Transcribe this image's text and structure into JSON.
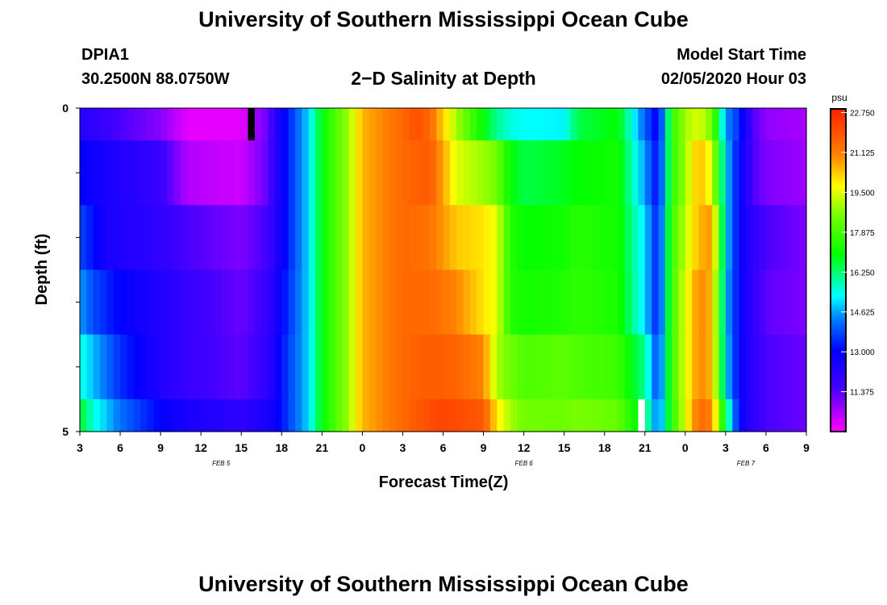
{
  "page": {
    "title_top": "University of Southern Mississippi Ocean Cube",
    "title_bottom": "University of Southern Mississippi Ocean Cube",
    "station_id": "DPIA1",
    "station_coords": "30.2500N 88.0750W",
    "plot_subtitle": "2−D Salinity at Depth",
    "model_start_label": "Model Start Time",
    "model_start_value": "02/05/2020 Hour 03"
  },
  "chart_data": {
    "type": "heatmap",
    "title": "2−D Salinity at Depth",
    "xlabel": "Forecast Time(Z)",
    "ylabel": "Depth (ft)",
    "ylim": [
      0,
      5
    ],
    "y_tick_labels": [
      "0",
      "5"
    ],
    "x_tick_labels": [
      "3",
      "6",
      "9",
      "12",
      "15",
      "18",
      "21",
      "0",
      "3",
      "6",
      "9",
      "12",
      "15",
      "18",
      "21",
      "0",
      "3",
      "6",
      "9"
    ],
    "date_labels": [
      {
        "text": "FEB 5",
        "at_tick": 3.5
      },
      {
        "text": "FEB 6",
        "at_tick": 11
      },
      {
        "text": "FEB 7",
        "at_tick": 16.5
      }
    ],
    "units": "psu",
    "colorbar_ticks": [
      "22.750",
      "21.125",
      "19.500",
      "17.875",
      "16.250",
      "14.625",
      "13.000",
      "11.375"
    ],
    "color_range": [
      9.75,
      22.9
    ],
    "n_hours": 54,
    "depth_bands": [
      [
        0,
        0.5
      ],
      [
        0.5,
        1.5
      ],
      [
        1.5,
        2.5
      ],
      [
        2.5,
        3.5
      ],
      [
        3.5,
        4.5
      ],
      [
        4.5,
        5
      ]
    ],
    "missing_cells": [
      {
        "band": 0,
        "hour": 12.5,
        "color": "#000000"
      },
      {
        "band": 5,
        "hour": 41.5,
        "color": "#ffffff"
      }
    ],
    "profiles": [
      {
        "depth_band": 0,
        "hours": [
          0,
          3,
          6,
          8,
          12,
          14,
          15,
          17,
          18,
          20,
          21,
          24,
          25,
          26,
          28,
          30,
          31,
          32,
          33,
          36,
          37,
          40,
          42,
          43,
          44,
          45,
          46,
          47,
          48,
          49,
          50,
          51,
          54
        ],
        "values": [
          12.2,
          11.5,
          10.9,
          10.0,
          10.0,
          11.2,
          12.8,
          15.0,
          17.0,
          19.0,
          20.5,
          21.5,
          22.0,
          21.5,
          19.0,
          17.0,
          16.0,
          15.5,
          15.3,
          15.2,
          16.5,
          17.0,
          14.0,
          12.8,
          17.5,
          19.0,
          19.5,
          18.5,
          14.5,
          13.5,
          11.5,
          10.8,
          10.6
        ]
      },
      {
        "depth_band": 1,
        "hours": [
          0,
          2,
          6,
          8,
          12,
          14,
          15,
          17,
          18,
          20,
          21,
          24,
          26,
          28,
          30,
          31,
          32,
          33,
          36,
          37,
          40,
          42,
          43,
          44,
          45,
          46,
          47,
          48,
          49,
          50,
          51,
          54
        ],
        "values": [
          13.0,
          12.5,
          11.8,
          10.5,
          10.2,
          11.3,
          12.8,
          15.0,
          17.0,
          19.0,
          20.5,
          21.5,
          21.8,
          19.5,
          18.9,
          18.5,
          17.0,
          16.5,
          16.8,
          17.0,
          17.2,
          14.5,
          13.0,
          17.5,
          19.0,
          20.5,
          19.5,
          15.0,
          13.0,
          11.5,
          11.0,
          10.7
        ]
      },
      {
        "depth_band": 2,
        "hours": [
          0,
          2,
          6,
          8,
          12,
          14,
          15,
          17,
          18,
          20,
          21,
          24,
          26,
          28,
          30,
          31,
          32,
          33,
          36,
          37,
          40,
          42,
          43,
          44,
          45,
          46,
          47,
          48,
          49,
          50,
          51,
          54
        ],
        "values": [
          13.8,
          12.5,
          12.0,
          11.5,
          11.0,
          11.6,
          12.8,
          15.0,
          17.0,
          19.0,
          20.5,
          21.5,
          21.3,
          20.3,
          20.0,
          19.5,
          17.5,
          17.0,
          17.2,
          17.5,
          17.2,
          15.0,
          13.2,
          17.8,
          19.2,
          20.5,
          20.8,
          15.0,
          13.0,
          12.0,
          11.5,
          11.0
        ]
      },
      {
        "depth_band": 3,
        "hours": [
          0,
          1,
          3,
          6,
          8,
          12,
          14,
          15,
          17,
          18,
          20,
          21,
          24,
          26,
          28,
          30,
          31,
          32,
          33,
          36,
          37,
          40,
          42,
          43,
          44,
          45,
          46,
          47,
          48,
          49,
          50,
          51,
          54
        ],
        "values": [
          14.6,
          13.8,
          13.0,
          12.3,
          11.8,
          11.2,
          11.8,
          13.0,
          15.0,
          17.0,
          19.0,
          20.5,
          21.5,
          21.5,
          21.0,
          20.0,
          19.5,
          17.5,
          17.2,
          17.4,
          17.6,
          17.3,
          15.0,
          13.2,
          17.8,
          19.5,
          21.0,
          20.5,
          14.8,
          13.0,
          12.0,
          11.3,
          11.0
        ]
      },
      {
        "depth_band": 4,
        "hours": [
          0,
          1,
          3,
          6,
          8,
          12,
          14,
          15,
          17,
          18,
          20,
          21,
          24,
          26,
          28,
          30,
          31,
          32,
          33,
          36,
          37,
          40,
          42,
          43,
          44,
          45,
          46,
          47,
          48,
          49,
          50,
          51,
          54
        ],
        "values": [
          15.5,
          14.8,
          13.5,
          12.3,
          11.8,
          11.3,
          12.0,
          13.2,
          15.0,
          17.0,
          19.0,
          20.5,
          21.5,
          21.8,
          21.6,
          21.0,
          19.0,
          18.5,
          18.0,
          18.2,
          18.0,
          17.8,
          16.0,
          13.5,
          17.8,
          19.5,
          21.0,
          20.5,
          15.0,
          13.0,
          12.0,
          11.5,
          11.2
        ]
      },
      {
        "depth_band": 5,
        "hours": [
          0,
          1,
          3,
          6,
          8,
          12,
          14,
          15,
          17,
          18,
          20,
          21,
          24,
          25,
          26,
          27,
          28,
          30,
          31,
          32,
          33,
          36,
          37,
          40,
          42,
          43,
          44,
          45,
          46,
          47,
          48,
          49,
          50,
          51,
          54
        ],
        "values": [
          16.8,
          15.5,
          14.2,
          13.0,
          12.5,
          12.0,
          12.5,
          13.2,
          15.0,
          17.0,
          19.0,
          20.5,
          21.5,
          21.8,
          22.0,
          22.2,
          22.1,
          21.8,
          20.0,
          19.0,
          18.5,
          18.4,
          18.6,
          18.3,
          16.5,
          14.0,
          17.5,
          19.5,
          21.5,
          21.0,
          16.5,
          13.0,
          12.0,
          11.5,
          11.2
        ]
      }
    ]
  }
}
